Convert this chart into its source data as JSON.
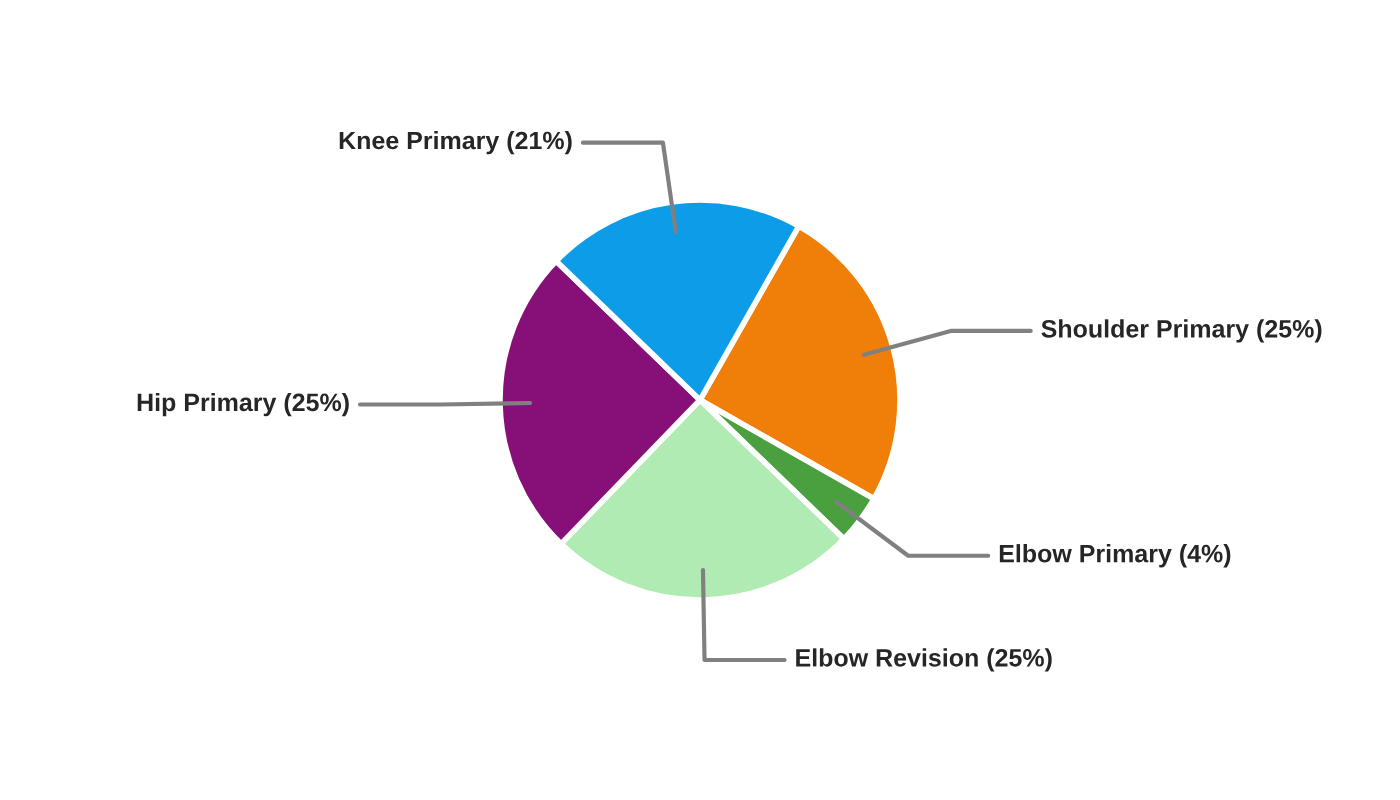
{
  "chart_data": {
    "type": "pie",
    "categories": [
      "Shoulder Primary",
      "Elbow Primary",
      "Elbow Revision",
      "Hip Primary",
      "Knee Primary"
    ],
    "values": [
      25,
      4,
      25,
      25,
      21
    ],
    "value_labels": [
      "(25%)",
      "(4%)",
      "(25%)",
      "(25%)",
      "(21%)"
    ],
    "colors": [
      "#f07f09",
      "#4a9f3f",
      "#b0ebb4",
      "#871078",
      "#0d9de8"
    ],
    "legend": false
  }
}
